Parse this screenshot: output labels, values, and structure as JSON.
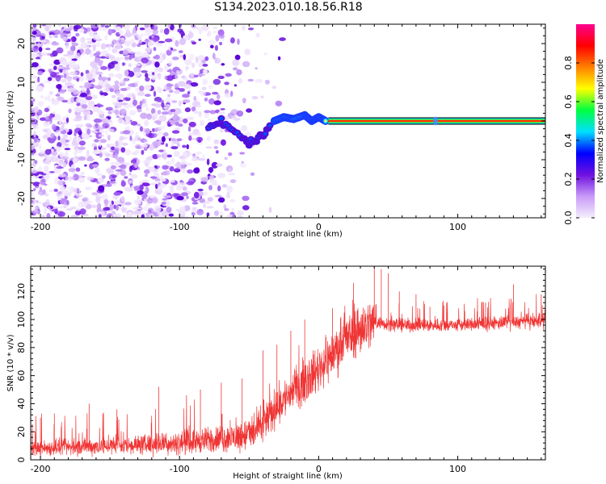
{
  "title": "S134.2023.010.18.56.R18",
  "chart_data": [
    {
      "type": "heatmap",
      "xlabel": "Height of straight line (km)",
      "ylabel": "Frequency (Hz)",
      "xlim": [
        -207,
        163
      ],
      "ylim": [
        -25,
        25
      ],
      "xticks": [
        -200,
        -100,
        0,
        100
      ],
      "yticks": [
        -20,
        -10,
        0,
        10,
        20
      ],
      "colorbar": {
        "label": "Normalized spectral amplitude",
        "range": [
          0,
          1
        ],
        "ticks": [
          "0.0",
          "0.2",
          "0.4",
          "0.6",
          "0.8"
        ],
        "colors": [
          "#f4eefc",
          "#c89af8",
          "#7010e0",
          "#0000ff",
          "#00e0ff",
          "#00ff40",
          "#ffff00",
          "#ff8000",
          "#ff0000",
          "#ff0090"
        ]
      },
      "features": [
        {
          "name": "noise-scatter",
          "x_range": [
            -207,
            -20
          ],
          "freq_range": [
            -25,
            25
          ],
          "amplitude": 0.15
        },
        {
          "name": "wavy-blobs",
          "x": [
            -79,
            -70,
            -60,
            -50,
            -42,
            -35
          ],
          "freq": [
            -2,
            0,
            -3,
            -6,
            -4,
            -1
          ],
          "amplitude": 0.3
        },
        {
          "name": "signal-onset",
          "x": [
            -32,
            -25,
            -18,
            -10,
            -5,
            0,
            5
          ],
          "freq": [
            0,
            1,
            0.5,
            1.5,
            0,
            1,
            0
          ],
          "amplitude": 0.55
        },
        {
          "name": "constant-tone",
          "x_range": [
            7,
            163
          ],
          "freq": 0,
          "amplitude": 0.85
        },
        {
          "name": "blip",
          "x": 84,
          "freq": 0,
          "amplitude": 0.4
        }
      ]
    },
    {
      "type": "line",
      "xlabel": "Height of straight line (km)",
      "ylabel": "SNR (10 * v/v)",
      "xlim": [
        -207,
        163
      ],
      "ylim": [
        0,
        138
      ],
      "xticks": [
        -200,
        -100,
        0,
        100
      ],
      "yticks": [
        0,
        20,
        40,
        60,
        80,
        100,
        120
      ],
      "color": "#f03535",
      "series": [
        {
          "name": "SNR trend",
          "x": [
            -207,
            -180,
            -150,
            -120,
            -100,
            -80,
            -60,
            -45,
            -38,
            -30,
            -20,
            -10,
            0,
            10,
            20,
            30,
            40,
            50,
            60,
            80,
            100,
            120,
            140,
            163
          ],
          "y": [
            8,
            9,
            10,
            11,
            12,
            14,
            16,
            20,
            28,
            38,
            48,
            56,
            65,
            75,
            86,
            94,
            98,
            97,
            96,
            96,
            96,
            97,
            98,
            99
          ]
        }
      ],
      "peaks": [
        {
          "x": -200,
          "y": 30
        },
        {
          "x": -190,
          "y": 33
        },
        {
          "x": -165,
          "y": 40
        },
        {
          "x": -145,
          "y": 36
        },
        {
          "x": -115,
          "y": 52
        },
        {
          "x": -95,
          "y": 46
        },
        {
          "x": -85,
          "y": 50
        },
        {
          "x": -70,
          "y": 55
        },
        {
          "x": -55,
          "y": 58
        },
        {
          "x": -40,
          "y": 78
        },
        {
          "x": -30,
          "y": 82
        },
        {
          "x": -20,
          "y": 92
        },
        {
          "x": -10,
          "y": 100
        },
        {
          "x": 10,
          "y": 108
        },
        {
          "x": 25,
          "y": 126
        },
        {
          "x": 40,
          "y": 138
        },
        {
          "x": 45,
          "y": 136
        },
        {
          "x": 50,
          "y": 133
        },
        {
          "x": 58,
          "y": 120
        },
        {
          "x": 70,
          "y": 118
        },
        {
          "x": 80,
          "y": 109
        },
        {
          "x": 90,
          "y": 110
        },
        {
          "x": 105,
          "y": 106
        },
        {
          "x": 120,
          "y": 112
        },
        {
          "x": 140,
          "y": 125
        },
        {
          "x": 160,
          "y": 118
        }
      ]
    }
  ]
}
